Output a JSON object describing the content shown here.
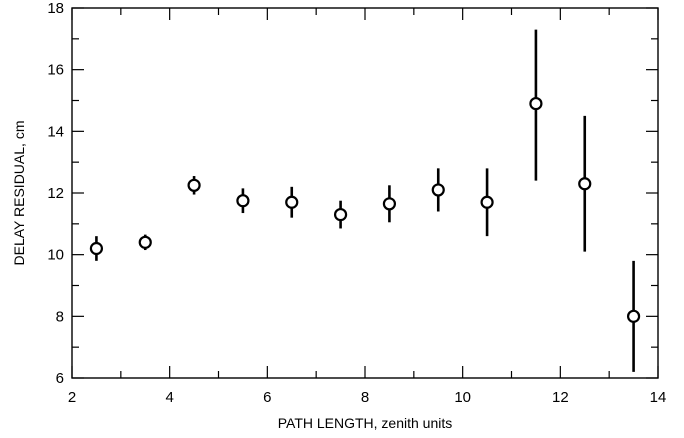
{
  "chart_data": {
    "type": "scatter",
    "title": "",
    "xlabel": "PATH LENGTH, zenith units",
    "ylabel": "DELAY RESIDUAL, cm",
    "xlim": [
      2,
      14
    ],
    "ylim": [
      6,
      18
    ],
    "x_ticks": [
      2,
      4,
      6,
      8,
      10,
      12,
      14
    ],
    "y_ticks": [
      6,
      8,
      10,
      12,
      14,
      16,
      18
    ],
    "grid": false,
    "legend": "none",
    "marker": "open-circle",
    "colors": {
      "axis": "#000000",
      "marker_fill": "#ffffff",
      "marker_stroke": "#000000",
      "error_bar": "#000000"
    },
    "points": [
      {
        "x": 2.5,
        "y": 10.2,
        "err_low": 0.4,
        "err_high": 0.4
      },
      {
        "x": 3.5,
        "y": 10.4,
        "err_low": 0.25,
        "err_high": 0.25
      },
      {
        "x": 4.5,
        "y": 12.25,
        "err_low": 0.3,
        "err_high": 0.3
      },
      {
        "x": 5.5,
        "y": 11.75,
        "err_low": 0.4,
        "err_high": 0.4
      },
      {
        "x": 6.5,
        "y": 11.7,
        "err_low": 0.5,
        "err_high": 0.5
      },
      {
        "x": 7.5,
        "y": 11.3,
        "err_low": 0.45,
        "err_high": 0.45
      },
      {
        "x": 8.5,
        "y": 11.65,
        "err_low": 0.6,
        "err_high": 0.6
      },
      {
        "x": 9.5,
        "y": 12.1,
        "err_low": 0.7,
        "err_high": 0.7
      },
      {
        "x": 10.5,
        "y": 11.7,
        "err_low": 1.1,
        "err_high": 1.1
      },
      {
        "x": 11.5,
        "y": 14.9,
        "err_low": 2.5,
        "err_high": 2.4
      },
      {
        "x": 12.5,
        "y": 12.3,
        "err_low": 2.2,
        "err_high": 2.2
      },
      {
        "x": 13.5,
        "y": 8.0,
        "err_low": 1.8,
        "err_high": 1.8
      }
    ]
  }
}
